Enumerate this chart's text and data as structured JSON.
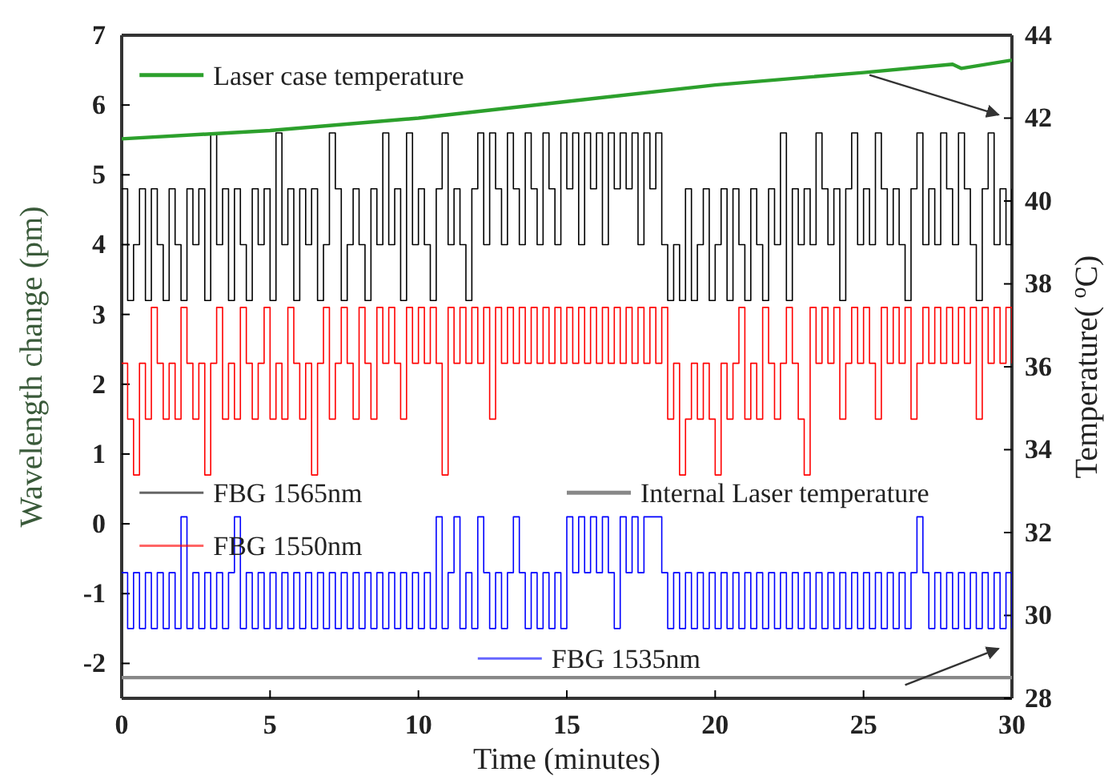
{
  "chart_data": {
    "type": "line",
    "xlabel": "Time (minutes)",
    "ylabel": "Wavelength change (pm)",
    "y2label": "Temperature( $^{o}$C)",
    "xlim": [
      0,
      30
    ],
    "xticks": [
      0,
      5,
      10,
      15,
      20,
      25,
      30
    ],
    "ylim": [
      -2.5,
      7
    ],
    "yticks": [
      -2,
      -1,
      0,
      1,
      2,
      3,
      4,
      5,
      6,
      7
    ],
    "y2lim": [
      28,
      44
    ],
    "y2ticks": [
      28,
      30,
      32,
      34,
      36,
      38,
      40,
      42,
      44
    ],
    "legend": "left",
    "x": [
      0,
      0.2,
      0.4,
      0.6,
      0.8,
      1,
      1.2,
      1.4,
      1.6,
      1.8,
      2,
      2.2,
      2.4,
      2.6,
      2.8,
      3,
      3.2,
      3.4,
      3.6,
      3.8,
      4,
      4.2,
      4.4,
      4.6,
      4.8,
      5,
      5.2,
      5.4,
      5.6,
      5.8,
      6,
      6.2,
      6.4,
      6.6,
      6.8,
      7,
      7.2,
      7.4,
      7.6,
      7.8,
      8,
      8.2,
      8.4,
      8.6,
      8.8,
      9,
      9.2,
      9.4,
      9.6,
      9.8,
      10,
      10.2,
      10.4,
      10.6,
      10.8,
      11,
      11.2,
      11.4,
      11.6,
      11.8,
      12,
      12.2,
      12.4,
      12.6,
      12.8,
      13,
      13.2,
      13.4,
      13.6,
      13.8,
      14,
      14.2,
      14.4,
      14.6,
      14.8,
      15,
      15.2,
      15.4,
      15.6,
      15.8,
      16,
      16.2,
      16.4,
      16.6,
      16.8,
      17,
      17.2,
      17.4,
      17.6,
      17.8,
      18,
      18.2,
      18.4,
      18.6,
      18.8,
      19,
      19.2,
      19.4,
      19.6,
      19.8,
      20,
      20.2,
      20.4,
      20.6,
      20.8,
      21,
      21.2,
      21.4,
      21.6,
      21.8,
      22,
      22.2,
      22.4,
      22.6,
      22.8,
      23,
      23.2,
      23.4,
      23.6,
      23.8,
      24,
      24.2,
      24.4,
      24.6,
      24.8,
      25,
      25.2,
      25.4,
      25.6,
      25.8,
      26,
      26.2,
      26.4,
      26.6,
      26.8,
      27,
      27.2,
      27.4,
      27.6,
      27.8,
      28,
      28.2,
      28.4,
      28.6,
      28.8,
      29,
      29.2,
      29.4,
      29.6,
      29.8,
      30
    ],
    "series": [
      {
        "name": "FBG 1565nm",
        "type": "step",
        "color": "#000000",
        "values": [
          4.8,
          3.2,
          4.0,
          4.8,
          3.2,
          4.8,
          4.0,
          3.2,
          4.8,
          4.0,
          3.2,
          4.8,
          4.0,
          4.8,
          3.2,
          5.6,
          4.0,
          4.8,
          3.2,
          4.8,
          4.0,
          3.2,
          4.8,
          4.0,
          4.8,
          3.2,
          5.6,
          4.0,
          4.8,
          3.2,
          4.8,
          4.0,
          4.8,
          3.2,
          4.0,
          5.6,
          4.8,
          3.2,
          4.0,
          4.8,
          4.0,
          3.2,
          4.8,
          4.0,
          5.6,
          4.0,
          4.8,
          3.2,
          5.6,
          4.0,
          4.8,
          4.0,
          3.2,
          4.8,
          5.6,
          4.0,
          4.8,
          4.0,
          3.2,
          4.8,
          5.6,
          4.0,
          5.6,
          4.8,
          4.0,
          5.6,
          4.8,
          4.0,
          5.6,
          4.8,
          4.0,
          5.6,
          4.8,
          4.0,
          5.6,
          4.8,
          5.6,
          4.0,
          5.6,
          4.8,
          5.6,
          4.0,
          5.6,
          4.8,
          5.6,
          4.8,
          5.6,
          4.0,
          5.6,
          4.8,
          5.6,
          4.0,
          3.2,
          4.0,
          3.2,
          4.8,
          3.2,
          4.0,
          4.8,
          3.2,
          4.0,
          4.8,
          3.2,
          4.8,
          4.0,
          3.2,
          4.8,
          4.0,
          3.2,
          4.8,
          4.0,
          5.6,
          3.2,
          4.8,
          4.0,
          4.8,
          4.0,
          5.6,
          4.8,
          4.0,
          4.8,
          3.2,
          4.8,
          5.6,
          4.0,
          4.8,
          4.0,
          5.6,
          4.8,
          4.0,
          4.8,
          4.0,
          3.2,
          4.8,
          5.6,
          4.0,
          4.8,
          4.0,
          5.6,
          4.8,
          4.0,
          5.6,
          4.8,
          4.0,
          3.2,
          4.8,
          5.6,
          4.0,
          4.8,
          4.0,
          4.8
        ]
      },
      {
        "name": "FBG 1550nm",
        "type": "step",
        "color": "#ff0000",
        "values": [
          2.3,
          1.5,
          0.7,
          2.3,
          1.5,
          3.1,
          2.3,
          1.5,
          2.3,
          1.5,
          3.1,
          2.3,
          1.5,
          2.3,
          0.7,
          2.3,
          3.1,
          1.5,
          2.3,
          1.5,
          3.1,
          2.3,
          1.5,
          2.3,
          3.1,
          1.5,
          2.3,
          1.5,
          3.1,
          2.3,
          1.5,
          2.3,
          0.7,
          2.3,
          3.1,
          1.5,
          2.3,
          3.1,
          2.3,
          1.5,
          3.1,
          2.3,
          1.5,
          3.1,
          2.3,
          3.1,
          2.3,
          1.5,
          3.1,
          2.3,
          3.1,
          2.3,
          3.1,
          2.3,
          0.7,
          3.1,
          2.3,
          3.1,
          2.3,
          3.1,
          2.3,
          3.1,
          1.5,
          3.1,
          2.3,
          3.1,
          2.3,
          3.1,
          2.3,
          3.1,
          2.3,
          3.1,
          2.3,
          3.1,
          2.3,
          3.1,
          2.3,
          3.1,
          2.3,
          3.1,
          2.3,
          3.1,
          2.3,
          3.1,
          2.3,
          3.1,
          2.3,
          3.1,
          2.3,
          3.1,
          2.3,
          3.1,
          1.5,
          2.3,
          0.7,
          1.5,
          2.3,
          1.5,
          2.3,
          1.5,
          0.7,
          2.3,
          1.5,
          2.3,
          3.1,
          1.5,
          2.3,
          1.5,
          3.1,
          2.3,
          1.5,
          2.3,
          3.1,
          2.3,
          1.5,
          0.7,
          3.1,
          2.3,
          3.1,
          2.3,
          3.1,
          1.5,
          2.3,
          3.1,
          2.3,
          3.1,
          2.3,
          1.5,
          3.1,
          2.3,
          3.1,
          2.3,
          3.1,
          1.5,
          2.3,
          3.1,
          2.3,
          3.1,
          2.3,
          3.1,
          2.3,
          3.1,
          2.3,
          3.1,
          1.5,
          3.1,
          2.3,
          3.1,
          2.3,
          3.1,
          2.3
        ]
      },
      {
        "name": "FBG 1535nm",
        "type": "step",
        "color": "#0000ff",
        "values": [
          -0.7,
          -1.5,
          -0.7,
          -1.5,
          -0.7,
          -1.5,
          -0.7,
          -1.5,
          -0.7,
          -1.5,
          0.1,
          -1.5,
          -0.7,
          -1.5,
          -0.7,
          -1.5,
          -0.7,
          -1.5,
          -0.7,
          0.1,
          -1.5,
          -0.7,
          -1.5,
          -0.7,
          -1.5,
          -0.7,
          -1.5,
          -0.7,
          -1.5,
          -0.7,
          -1.5,
          -0.7,
          -1.5,
          -0.7,
          -1.5,
          -0.7,
          -1.5,
          -0.7,
          -1.5,
          -0.7,
          -1.5,
          -0.7,
          -1.5,
          -0.7,
          -1.5,
          -0.7,
          -1.5,
          -0.7,
          -1.5,
          -0.7,
          -1.5,
          -0.7,
          -1.5,
          0.1,
          -1.5,
          -0.7,
          0.1,
          -1.5,
          -0.7,
          -1.5,
          0.1,
          -0.7,
          -1.5,
          -0.7,
          -1.5,
          -0.7,
          0.1,
          -0.7,
          -1.5,
          -0.7,
          -1.5,
          -0.7,
          -1.5,
          -0.7,
          -1.5,
          0.1,
          -0.7,
          0.1,
          -0.7,
          0.1,
          -0.7,
          0.1,
          -0.7,
          -1.5,
          0.1,
          -0.7,
          0.1,
          -0.7,
          0.1,
          0.1,
          0.1,
          -0.7,
          -1.5,
          -0.7,
          -1.5,
          -0.7,
          -1.5,
          -0.7,
          -1.5,
          -0.7,
          -1.5,
          -0.7,
          -1.5,
          -0.7,
          -1.5,
          -0.7,
          -1.5,
          -0.7,
          -1.5,
          -0.7,
          -1.5,
          -0.7,
          -1.5,
          -0.7,
          -1.5,
          -0.7,
          -1.5,
          -0.7,
          -1.5,
          -0.7,
          -1.5,
          -0.7,
          -1.5,
          -0.7,
          -1.5,
          -0.7,
          -1.5,
          -0.7,
          -1.5,
          -0.7,
          -1.5,
          -0.7,
          -1.5,
          -0.7,
          0.1,
          -0.7,
          -1.5,
          -0.7,
          -1.5,
          -0.7,
          -1.5,
          -0.7,
          -1.5,
          -0.7,
          -1.5,
          -0.7,
          -1.5,
          -0.7,
          -1.5,
          -0.7,
          -1.5
        ]
      },
      {
        "name": "Laser case temperature",
        "type": "line",
        "axis": "y2",
        "color": "#2ca02c",
        "x": [
          0,
          5,
          10,
          15,
          20,
          25,
          28,
          28.3,
          30
        ],
        "values": [
          41.5,
          41.7,
          42.0,
          42.4,
          42.8,
          43.1,
          43.3,
          43.2,
          43.4
        ]
      },
      {
        "name": "Internal Laser temperature",
        "type": "line",
        "axis": "y2",
        "color": "#888888",
        "x": [
          0,
          30
        ],
        "values": [
          28.5,
          28.5
        ]
      }
    ]
  }
}
